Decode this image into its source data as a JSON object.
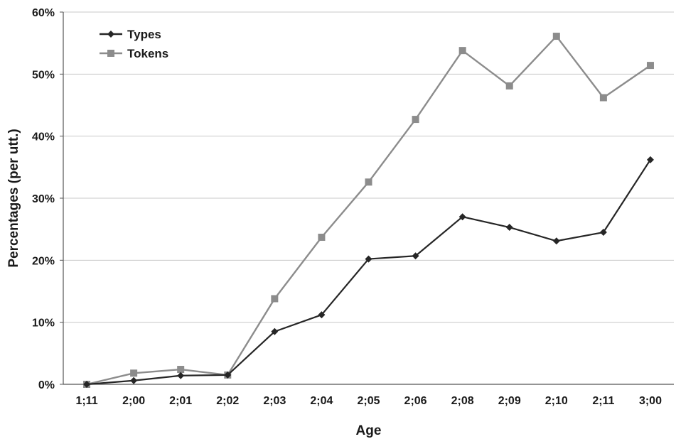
{
  "chart_data": {
    "type": "line",
    "title": "",
    "xlabel": "Age",
    "ylabel": "Percentages (per utt.)",
    "categories": [
      "1;11",
      "2;00",
      "2;01",
      "2;02",
      "2;03",
      "2;04",
      "2;05",
      "2;06",
      "2;08",
      "2;09",
      "2;10",
      "2;11",
      "3;00"
    ],
    "ylim": [
      0,
      60
    ],
    "yticks": [
      0,
      10,
      20,
      30,
      40,
      50,
      60
    ],
    "ytick_labels": [
      "0%",
      "10%",
      "20%",
      "30%",
      "40%",
      "50%",
      "60%"
    ],
    "grid": true,
    "legend": "top-left",
    "series": [
      {
        "name": "Types",
        "color": "#262626",
        "marker": "diamond",
        "values": [
          0,
          0.6,
          1.4,
          1.5,
          8.5,
          11.2,
          20.2,
          20.7,
          27.0,
          25.3,
          23.1,
          24.5,
          36.2
        ]
      },
      {
        "name": "Tokens",
        "color": "#8c8c8c",
        "marker": "square",
        "values": [
          0,
          1.8,
          2.4,
          1.5,
          13.8,
          23.7,
          32.6,
          42.7,
          53.8,
          48.1,
          56.1,
          46.2,
          51.4
        ]
      }
    ]
  }
}
